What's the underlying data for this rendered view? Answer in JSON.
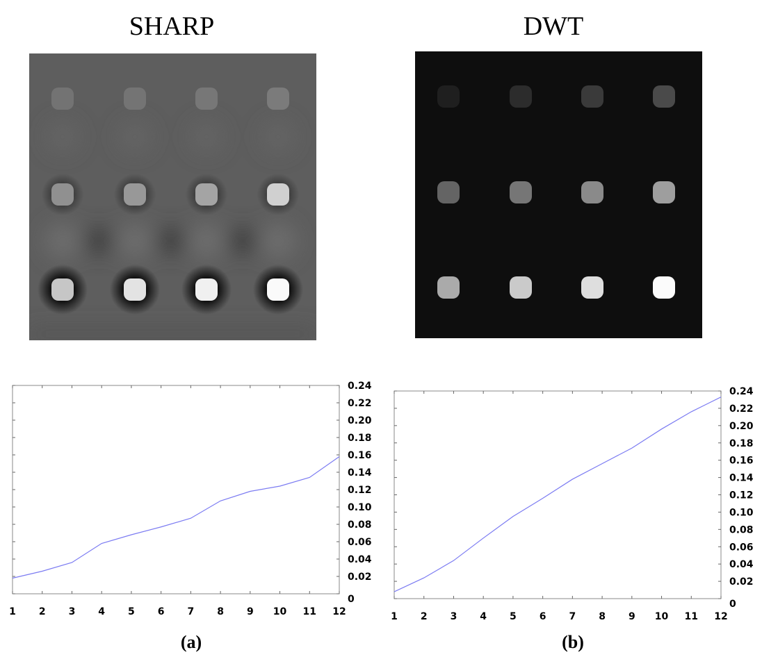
{
  "panels": {
    "a": {
      "title": "SHARP",
      "label": "(a)"
    },
    "b": {
      "title": "DWT",
      "label": "(b)"
    }
  },
  "chart_data": [
    {
      "type": "line",
      "panel": "a",
      "x": [
        1,
        2,
        3,
        4,
        5,
        6,
        7,
        8,
        9,
        10,
        11,
        12
      ],
      "x_tick_labels": [
        "1",
        "2",
        "3",
        "4",
        "5",
        "6",
        "7",
        "8",
        "9",
        "10",
        "11",
        "12"
      ],
      "series": [
        {
          "name": "SHARP",
          "values": [
            0.018,
            0.026,
            0.036,
            0.058,
            0.068,
            0.077,
            0.087,
            0.107,
            0.118,
            0.124,
            0.134,
            0.158
          ]
        }
      ],
      "xlim": [
        1,
        12
      ],
      "ylim": [
        0,
        0.24
      ],
      "y_ticks": [
        0,
        0.02,
        0.04,
        0.06,
        0.08,
        0.1,
        0.12,
        0.14,
        0.16,
        0.18,
        0.2,
        0.22,
        0.24
      ],
      "y_tick_labels": [
        "0",
        "0.02",
        "0.04",
        "0.06",
        "0.08",
        "0.10",
        "0.12",
        "0.14",
        "0.16",
        "0.18",
        "0.20",
        "0.22",
        "0.24"
      ],
      "y_axis_side": "right",
      "line_color": "#7b7bf2",
      "title": "",
      "xlabel": "",
      "ylabel": ""
    },
    {
      "type": "line",
      "panel": "b",
      "x": [
        1,
        2,
        3,
        4,
        5,
        6,
        7,
        8,
        9,
        10,
        11,
        12
      ],
      "x_tick_labels": [
        "1",
        "2",
        "3",
        "4",
        "5",
        "6",
        "7",
        "8",
        "9",
        "10",
        "11",
        "12"
      ],
      "series": [
        {
          "name": "DWT",
          "values": [
            0.008,
            0.024,
            0.044,
            0.07,
            0.095,
            0.116,
            0.138,
            0.156,
            0.174,
            0.196,
            0.216,
            0.233
          ]
        }
      ],
      "xlim": [
        1,
        12
      ],
      "ylim": [
        0,
        0.24
      ],
      "y_ticks": [
        0,
        0.02,
        0.04,
        0.06,
        0.08,
        0.1,
        0.12,
        0.14,
        0.16,
        0.18,
        0.2,
        0.22,
        0.24
      ],
      "y_tick_labels": [
        "0",
        "0.02",
        "0.04",
        "0.06",
        "0.08",
        "0.10",
        "0.12",
        "0.14",
        "0.16",
        "0.18",
        "0.20",
        "0.22",
        "0.24"
      ],
      "y_axis_side": "right",
      "line_color": "#7b7bf2",
      "title": "",
      "xlabel": "",
      "ylabel": ""
    }
  ],
  "phantoms": [
    {
      "panel": "a",
      "background": "#5e5e5e",
      "row_colors": [
        [
          "#737373",
          "#747474",
          "#777777",
          "#7b7b7b"
        ],
        [
          "#909090",
          "#989898",
          "#a4a4a4",
          "#d0d0d0"
        ],
        [
          "#c6c6c6",
          "#e3e3e3",
          "#f0f0f0",
          "#fafafa"
        ]
      ]
    },
    {
      "panel": "b",
      "background": "#0e0e0e",
      "row_colors": [
        [
          "#1f1f1f",
          "#2c2c2c",
          "#3a3a3a",
          "#4a4a4a"
        ],
        [
          "#646464",
          "#767676",
          "#8a8a8a",
          "#9e9e9e"
        ],
        [
          "#aaaaaa",
          "#cacaca",
          "#dedede",
          "#fbfbfb"
        ]
      ]
    }
  ]
}
